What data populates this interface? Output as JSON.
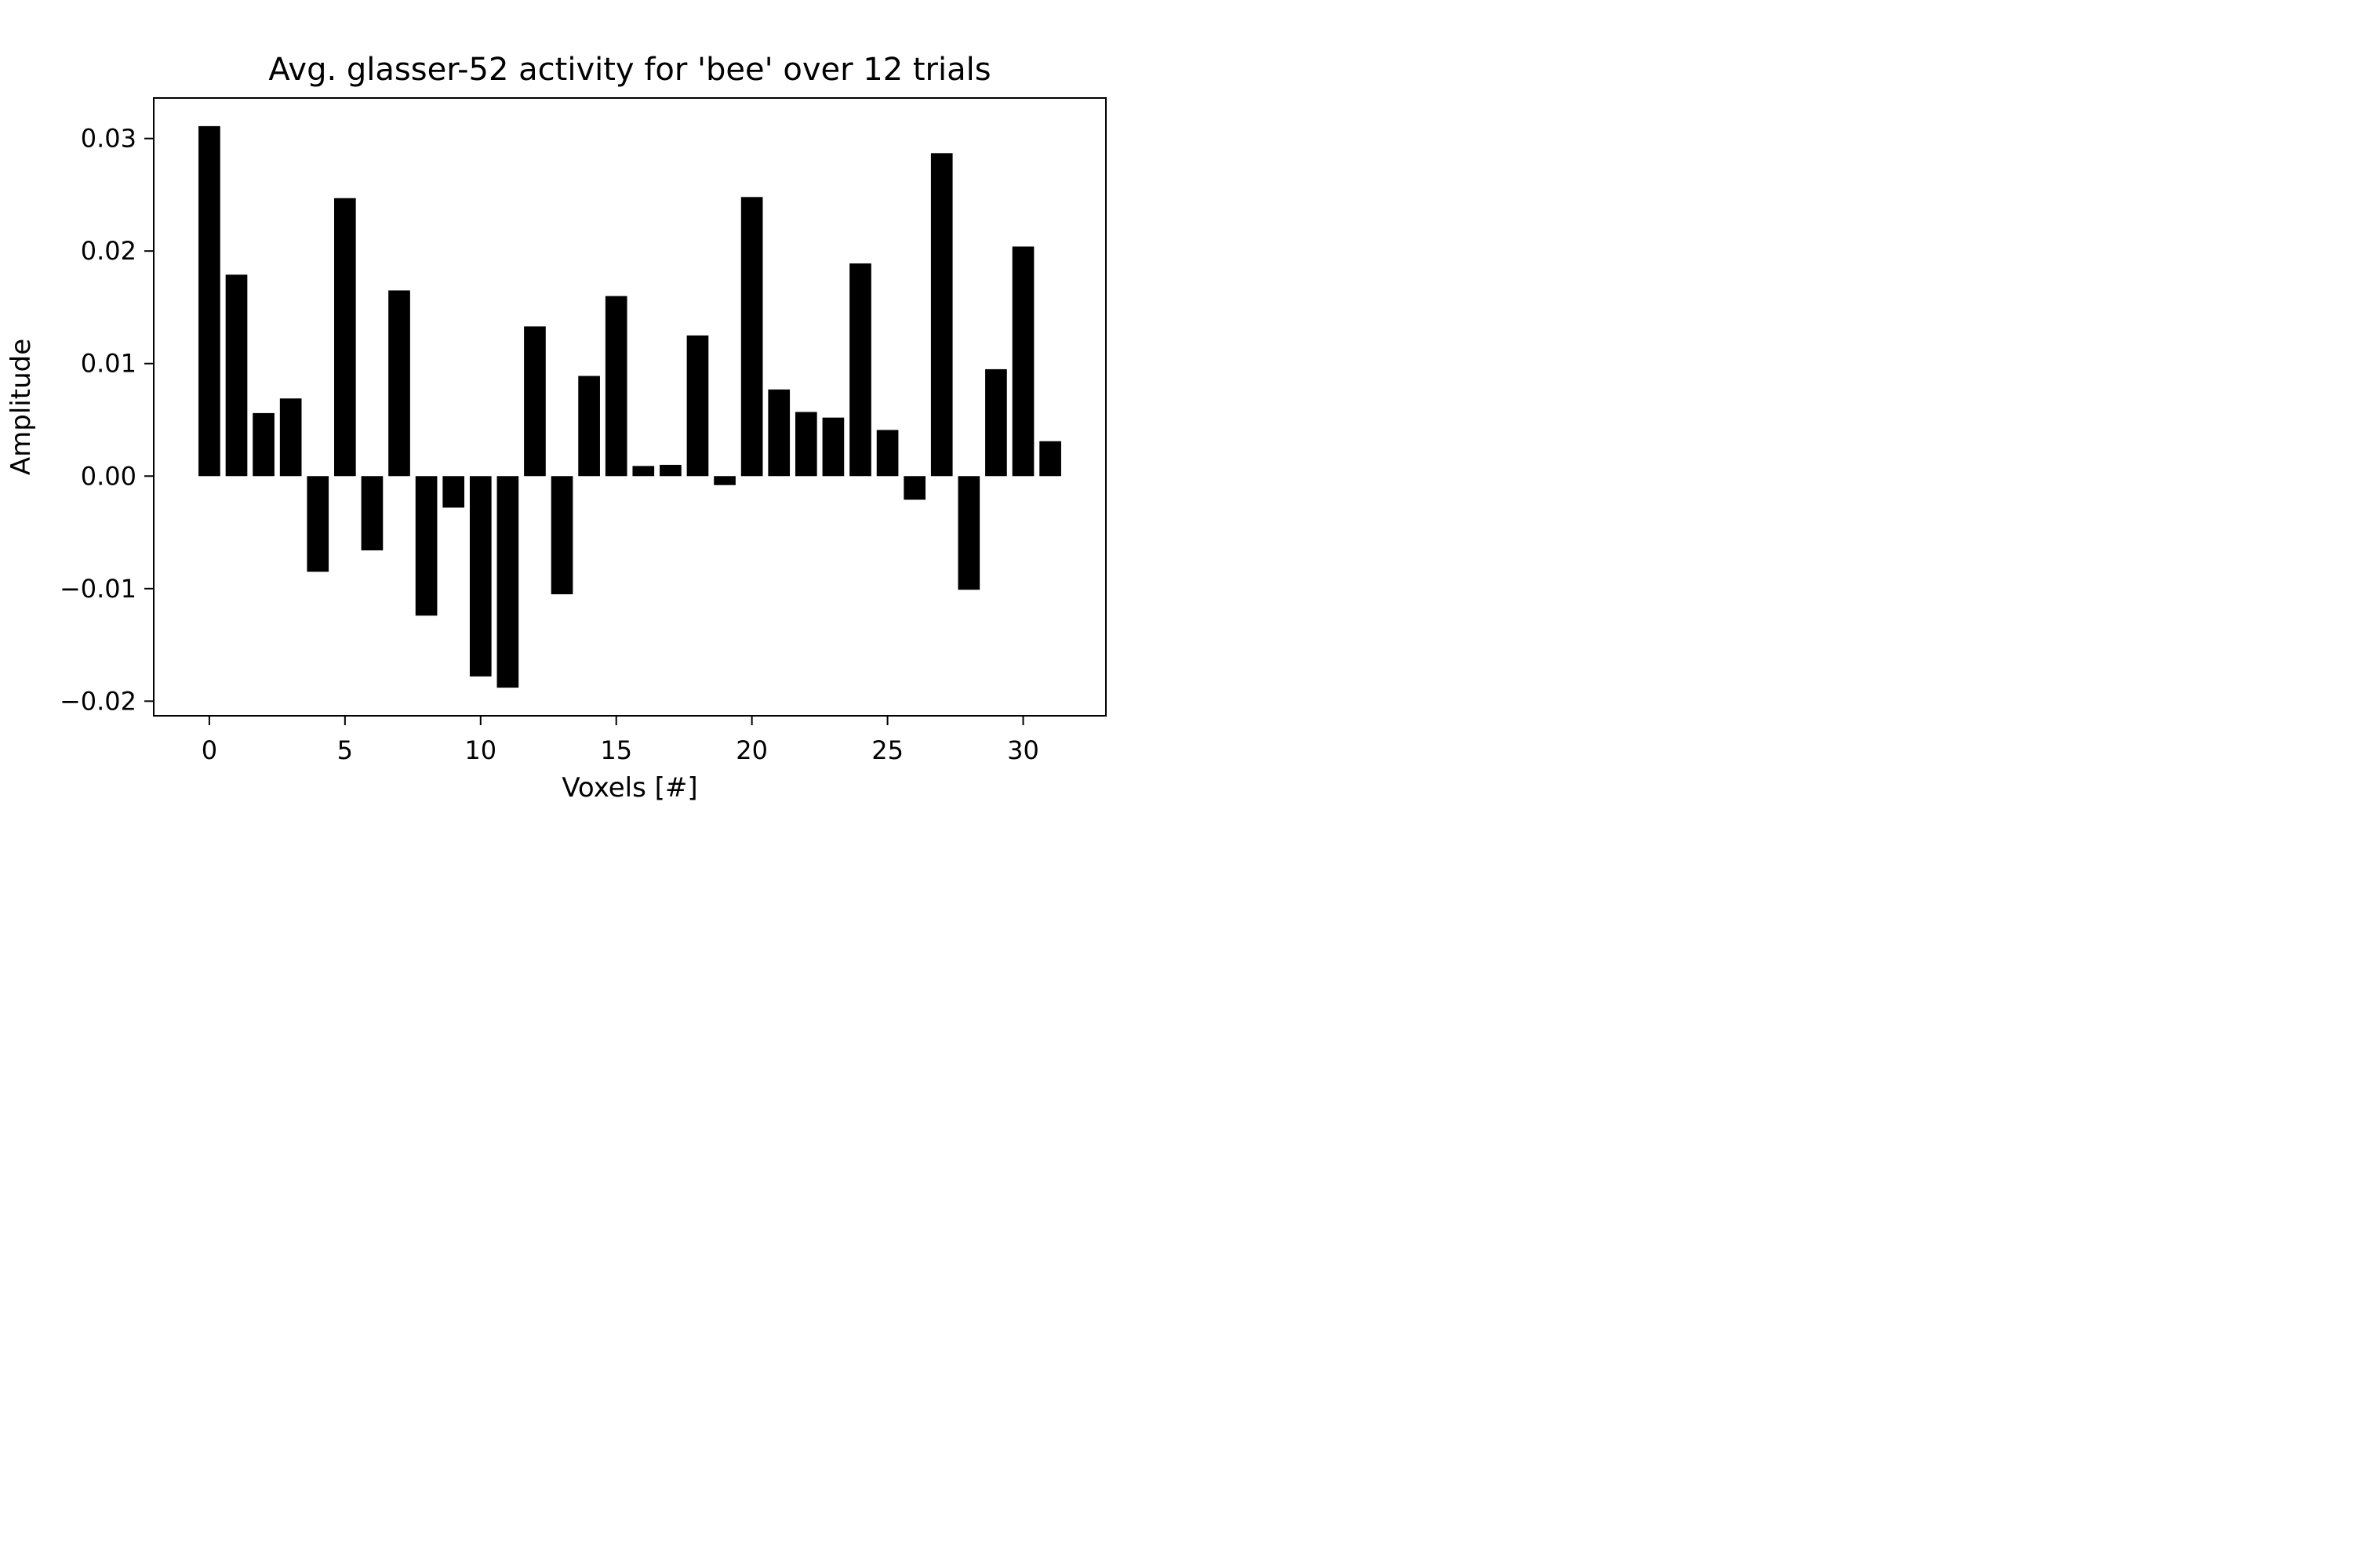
{
  "chart_data": {
    "type": "bar",
    "title": "Avg. glasser-52 activity for 'bee' over 12 trials",
    "xlabel": "Voxels [#]",
    "ylabel": "Amplitude",
    "x": [
      0,
      1,
      2,
      3,
      4,
      5,
      6,
      7,
      8,
      9,
      10,
      11,
      12,
      13,
      14,
      15,
      16,
      17,
      18,
      19,
      20,
      21,
      22,
      23,
      24,
      25,
      26,
      27,
      28,
      29,
      30,
      31
    ],
    "values": [
      0.0311,
      0.0179,
      0.0056,
      0.0069,
      -0.0085,
      0.0247,
      -0.0066,
      0.0165,
      -0.0124,
      -0.0028,
      -0.0178,
      -0.0188,
      0.0133,
      -0.0105,
      0.0089,
      0.016,
      0.0009,
      0.001,
      0.0125,
      -0.0008,
      0.0248,
      0.0077,
      0.0057,
      0.0052,
      0.0189,
      0.0041,
      -0.0021,
      0.0287,
      -0.0101,
      0.0095,
      0.0204,
      0.0031
    ],
    "xlim": [
      -2.05,
      33.05
    ],
    "ylim": [
      -0.0213,
      0.0336
    ],
    "xticks": [
      0,
      5,
      10,
      15,
      20,
      25,
      30
    ],
    "xtick_labels": [
      "0",
      "5",
      "10",
      "15",
      "20",
      "25",
      "30"
    ],
    "yticks": [
      -0.02,
      -0.01,
      0.0,
      0.01,
      0.02,
      0.03
    ],
    "ytick_labels": [
      "−0.02",
      "−0.01",
      "0.00",
      "0.01",
      "0.02",
      "0.03"
    ],
    "grid": false,
    "bar_color": "#000000"
  }
}
